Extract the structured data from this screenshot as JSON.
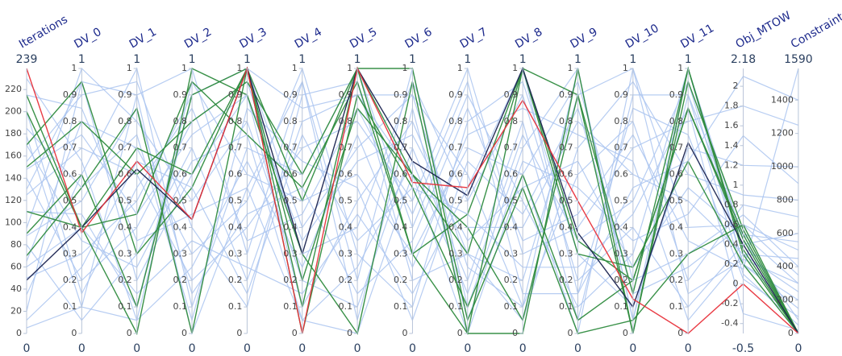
{
  "chart_data": {
    "type": "parallel-coordinates",
    "axes": [
      {
        "label": "Iterations",
        "range": [
          0,
          239
        ],
        "ticks": [
          0,
          20,
          40,
          60,
          80,
          100,
          120,
          140,
          160,
          180,
          200,
          220
        ]
      },
      {
        "label": "DV_0",
        "range": [
          0,
          1
        ],
        "ticks": [
          0,
          0.1,
          0.2,
          0.3,
          0.4,
          0.5,
          0.6,
          0.7,
          0.8,
          0.9,
          1
        ]
      },
      {
        "label": "DV_1",
        "range": [
          0,
          1
        ],
        "ticks": [
          0,
          0.1,
          0.2,
          0.3,
          0.4,
          0.5,
          0.6,
          0.7,
          0.8,
          0.9,
          1
        ]
      },
      {
        "label": "DV_2",
        "range": [
          0,
          1
        ],
        "ticks": [
          0,
          0.1,
          0.2,
          0.3,
          0.4,
          0.5,
          0.6,
          0.7,
          0.8,
          0.9,
          1
        ]
      },
      {
        "label": "DV_3",
        "range": [
          0,
          1
        ],
        "ticks": [
          0,
          0.1,
          0.2,
          0.3,
          0.4,
          0.5,
          0.6,
          0.7,
          0.8,
          0.9,
          1
        ]
      },
      {
        "label": "DV_4",
        "range": [
          0,
          1
        ],
        "ticks": [
          0,
          0.1,
          0.2,
          0.3,
          0.4,
          0.5,
          0.6,
          0.7,
          0.8,
          0.9,
          1
        ]
      },
      {
        "label": "DV_5",
        "range": [
          0,
          1
        ],
        "ticks": [
          0,
          0.1,
          0.2,
          0.3,
          0.4,
          0.5,
          0.6,
          0.7,
          0.8,
          0.9,
          1
        ]
      },
      {
        "label": "DV_6",
        "range": [
          0,
          1
        ],
        "ticks": [
          0,
          0.1,
          0.2,
          0.3,
          0.4,
          0.5,
          0.6,
          0.7,
          0.8,
          0.9,
          1
        ]
      },
      {
        "label": "DV_7",
        "range": [
          0,
          1
        ],
        "ticks": [
          0,
          0.1,
          0.2,
          0.3,
          0.4,
          0.5,
          0.6,
          0.7,
          0.8,
          0.9,
          1
        ]
      },
      {
        "label": "DV_8",
        "range": [
          0,
          1
        ],
        "ticks": [
          0,
          0.1,
          0.2,
          0.3,
          0.4,
          0.5,
          0.6,
          0.7,
          0.8,
          0.9,
          1
        ]
      },
      {
        "label": "DV_9",
        "range": [
          0,
          1
        ],
        "ticks": [
          0,
          0.1,
          0.2,
          0.3,
          0.4,
          0.5,
          0.6,
          0.7,
          0.8,
          0.9,
          1
        ]
      },
      {
        "label": "DV_10",
        "range": [
          0,
          1
        ],
        "ticks": [
          0,
          0.1,
          0.2,
          0.3,
          0.4,
          0.5,
          0.6,
          0.7,
          0.8,
          0.9,
          1
        ]
      },
      {
        "label": "DV_11",
        "range": [
          0,
          1
        ],
        "ticks": [
          0,
          0.1,
          0.2,
          0.3,
          0.4,
          0.5,
          0.6,
          0.7,
          0.8,
          0.9,
          1
        ]
      },
      {
        "label": "Obj_MTOW",
        "range": [
          -0.5,
          2.18
        ],
        "ticks": [
          -0.4,
          -0.2,
          0,
          0.2,
          0.4,
          0.6,
          0.8,
          1,
          1.2,
          1.4,
          1.6,
          1.8,
          2
        ]
      },
      {
        "label": "Constraints",
        "range": [
          0,
          1590
        ],
        "ticks": [
          0,
          200,
          400,
          600,
          800,
          1000,
          1200,
          1400
        ]
      }
    ],
    "lines": [
      {
        "color": "#aac4f0",
        "values": [
          5,
          0.1,
          0.9,
          1,
          0.3,
          0.95,
          0.2,
          1,
          0.1,
          0.7,
          1,
          0.05,
          0.9,
          0.5,
          300
        ]
      },
      {
        "color": "#aac4f0",
        "values": [
          20,
          0.95,
          0.2,
          0.6,
          0.9,
          0.1,
          0.5,
          0.8,
          0.3,
          0.2,
          0.9,
          1,
          0.4,
          0.6,
          500
        ]
      },
      {
        "color": "#aac4f0",
        "values": [
          35,
          0.6,
          1,
          0.1,
          0.7,
          0.6,
          1,
          0.4,
          0.9,
          0.5,
          0.1,
          0.3,
          1,
          0.2,
          150
        ]
      },
      {
        "color": "#aac4f0",
        "values": [
          50,
          0.3,
          0.5,
          0.9,
          1,
          0.4,
          0.7,
          0.9,
          0.6,
          0.1,
          0.6,
          0.8,
          0.2,
          0.8,
          700
        ]
      },
      {
        "color": "#aac4f0",
        "values": [
          65,
          0.8,
          0.7,
          0.3,
          0.5,
          1,
          0.3,
          0.1,
          0.8,
          0.95,
          0.3,
          0.1,
          0.7,
          1.2,
          1000
        ]
      },
      {
        "color": "#aac4f0",
        "values": [
          80,
          0.05,
          0.3,
          0.7,
          0.2,
          0.8,
          0.9,
          0.6,
          0.4,
          0.4,
          0.8,
          0.6,
          0.5,
          0.3,
          250
        ]
      },
      {
        "color": "#aac4f0",
        "values": [
          95,
          1,
          0.8,
          0.5,
          0.8,
          0.2,
          0.1,
          0.7,
          0.2,
          0.8,
          0.05,
          0.9,
          0.9,
          0.1,
          50
        ]
      },
      {
        "color": "#aac4f0",
        "values": [
          110,
          0.45,
          0.1,
          0.95,
          0.6,
          0.5,
          0.6,
          0.3,
          0.7,
          0.6,
          0.95,
          0.2,
          0.3,
          0.7,
          400
        ]
      },
      {
        "color": "#aac4f0",
        "values": [
          125,
          0.7,
          0.6,
          0.2,
          0.4,
          0.7,
          0.8,
          0.5,
          1,
          0.3,
          0.4,
          0.7,
          0.8,
          1.8,
          1250
        ]
      },
      {
        "color": "#aac4f0",
        "values": [
          140,
          0.2,
          0.4,
          0.8,
          0.95,
          0.3,
          0.4,
          0.95,
          0.5,
          0.9,
          0.2,
          0.4,
          0.1,
          0.4,
          600
        ]
      },
      {
        "color": "#aac4f0",
        "values": [
          155,
          0.9,
          0.95,
          0.4,
          0.1,
          0.9,
          0.95,
          0.2,
          0.3,
          0.05,
          0.7,
          0.95,
          0.6,
          0.9,
          800
        ]
      },
      {
        "color": "#aac4f0",
        "values": [
          170,
          0.35,
          0.25,
          0.65,
          0.75,
          0.05,
          0.25,
          0.65,
          0.15,
          0.75,
          0.35,
          0.5,
          0.95,
          0.2,
          200
        ]
      },
      {
        "color": "#aac4f0",
        "values": [
          185,
          0.55,
          0.75,
          0.05,
          0.85,
          0.65,
          0.55,
          0.05,
          0.65,
          0.45,
          0.85,
          0.15,
          0.25,
          0.6,
          350
        ]
      },
      {
        "color": "#aac4f0",
        "values": [
          200,
          0.15,
          0.55,
          0.85,
          0.35,
          0.45,
          0.85,
          0.45,
          0.95,
          0.15,
          0.15,
          0.85,
          0.75,
          0.05,
          100
        ]
      },
      {
        "color": "#aac4f0",
        "values": [
          215,
          0.85,
          0.35,
          0.45,
          0.55,
          0.95,
          0.05,
          0.85,
          0.05,
          0.65,
          0.55,
          0.35,
          0.45,
          1.5,
          900
        ]
      },
      {
        "color": "#aac4f0",
        "values": [
          230,
          0.65,
          0.05,
          0.25,
          0.65,
          0.25,
          0.75,
          0.25,
          0.75,
          0.85,
          0.75,
          0.65,
          0.05,
          0.3,
          450
        ]
      },
      {
        "color": "#aac4f0",
        "values": [
          12,
          0.25,
          0.65,
          0.55,
          0.15,
          0.75,
          0.35,
          0.55,
          0.45,
          0.25,
          0.25,
          0.45,
          0.85,
          -0.3,
          20
        ]
      },
      {
        "color": "#aac4f0",
        "values": [
          148,
          0.75,
          0.45,
          0.75,
          0.9,
          0.35,
          0.65,
          0.75,
          0.35,
          0.55,
          0.65,
          0.25,
          0.55,
          0.5,
          550
        ]
      },
      {
        "color": "#aac4f0",
        "values": [
          88,
          0.5,
          0.85,
          0.15,
          0.45,
          0.55,
          0.15,
          0.35,
          0.85,
          0.35,
          0.45,
          0.75,
          0.35,
          0.15,
          1590
        ]
      },
      {
        "color": "#aac4f0",
        "values": [
          60,
          0.4,
          0.15,
          0.35,
          0.25,
          0.15,
          0.45,
          0.15,
          0.55,
          1,
          0.15,
          0.55,
          0.65,
          2.1,
          1400
        ]
      },
      {
        "color": "#aac4f0",
        "values": [
          178,
          0.1,
          0.05,
          0.9,
          1,
          0.85,
          0.9,
          0.9,
          0.25,
          0.1,
          1,
          0.05,
          1,
          0.45,
          80
        ]
      },
      {
        "color": "#aac4f0",
        "values": [
          130,
          0.95,
          0.9,
          0.0,
          0.55,
          0.05,
          0.0,
          0.6,
          0.0,
          0.6,
          0.0,
          1,
          0.15,
          0.25,
          300
        ]
      },
      {
        "color": "#2e8b3e",
        "values": [
          200,
          0.4,
          0.7,
          0.6,
          1,
          0.5,
          1,
          0.6,
          0.3,
          1,
          0.9,
          0.15,
          1,
          0.3,
          0
        ]
      },
      {
        "color": "#2e8b3e",
        "values": [
          215,
          0.4,
          0.0,
          1,
          0.9,
          0.3,
          0.0,
          0.95,
          0.0,
          0.0,
          1,
          0.0,
          0.95,
          0.55,
          0
        ]
      },
      {
        "color": "#2e8b3e",
        "values": [
          170,
          0.95,
          0.3,
          0.55,
          1,
          0.0,
          0.9,
          0.55,
          0.1,
          0.6,
          0.05,
          0.2,
          0.85,
          0.45,
          0
        ]
      },
      {
        "color": "#2e8b3e",
        "values": [
          110,
          0.4,
          0.45,
          0.95,
          0.75,
          0.55,
          0.95,
          0.3,
          0.0,
          1,
          0.3,
          0.25,
          0.65,
          0.2,
          0
        ]
      },
      {
        "color": "#2e8b3e",
        "values": [
          70,
          0.55,
          0.85,
          0.0,
          1,
          0.2,
          0.85,
          0.6,
          0.4,
          0.05,
          0.9,
          0.0,
          1,
          0.35,
          0
        ]
      },
      {
        "color": "#2e8b3e",
        "values": [
          150,
          0.8,
          0.6,
          0.8,
          0.95,
          0.6,
          1,
          1,
          0.05,
          0.55,
          0.0,
          0.05,
          0.3,
          0.6,
          0
        ]
      },
      {
        "color": "#2e8b3e",
        "values": [
          90,
          0.6,
          0.1,
          0.9,
          1,
          0.1,
          1,
          0.3,
          0.45,
          1,
          0.35,
          0.2,
          0.85,
          0.5,
          0
        ]
      },
      {
        "color": "#1a2350",
        "values": [
          48,
          0.4,
          0.62,
          0.43,
          1,
          0.3,
          1,
          0.65,
          0.52,
          1,
          0.38,
          0.1,
          0.72,
          0.4,
          0
        ]
      },
      {
        "color": "#e8303a",
        "values": [
          239,
          0.38,
          0.65,
          0.43,
          1,
          0,
          1,
          0.57,
          0.55,
          0.88,
          0.5,
          0.13,
          0,
          0,
          0
        ]
      }
    ]
  }
}
